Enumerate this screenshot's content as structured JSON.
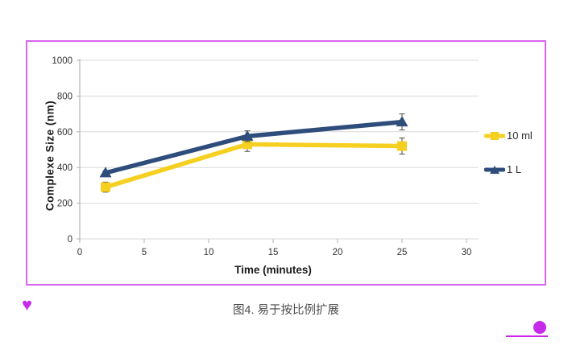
{
  "figure": {
    "border_color": "#d966ee",
    "caption": "图4. 易于按比例扩展"
  },
  "decor": {
    "heart_glyph": "♥",
    "accent_color": "#c52be9"
  },
  "chart_data": {
    "type": "line",
    "title": "",
    "xlabel": "Time (minutes)",
    "ylabel": "Complexe  Size (nm)",
    "xlim": [
      0,
      30
    ],
    "ylim": [
      0,
      1000
    ],
    "x_ticks": [
      0,
      5,
      10,
      15,
      20,
      25,
      30
    ],
    "y_ticks": [
      0,
      200,
      400,
      600,
      800,
      1000
    ],
    "grid": "horizontal-only",
    "gridline_color": "#d9d9d9",
    "axis_color": "#b3b3b3",
    "errorbar_color": "#4a4a4a",
    "legend_position": "right-outside",
    "series": [
      {
        "name": "10 ml",
        "color": "#f5d021",
        "marker": "square",
        "x": [
          2,
          13,
          25
        ],
        "y": [
          290,
          530,
          520
        ],
        "yerr": [
          28,
          40,
          45
        ]
      },
      {
        "name": "1 L",
        "color": "#2e4d7b",
        "marker": "triangle",
        "x": [
          2,
          13,
          25
        ],
        "y": [
          370,
          575,
          655
        ],
        "yerr": [
          12,
          30,
          45
        ]
      }
    ]
  }
}
